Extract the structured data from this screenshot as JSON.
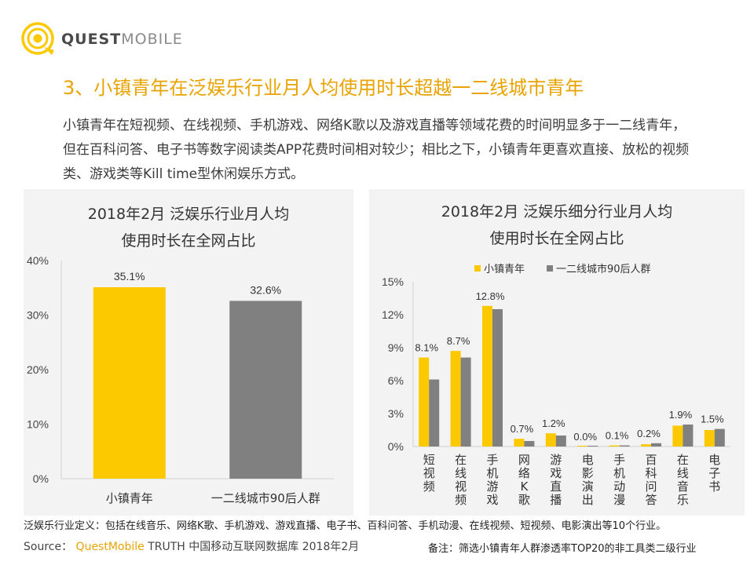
{
  "brand": {
    "name_bold": "QUEST",
    "name_light": "MOBILE"
  },
  "title": "3、小镇青年在泛娱乐行业月人均使用时长超越一二线城市青年",
  "description": "小镇青年在短视频、在线视频、手机游戏、网络K歌以及游戏直播等领域花费的时间明显多于一二线青年，但在百科问答、电子书等数字阅读类APP花费时间相对较少；相比之下，小镇青年更喜欢直接、放松的视频类、游戏类等Kill time型休闲娱乐方式。",
  "left_panel": {
    "title_line1": "2018年2月 泛娱乐行业月人均",
    "title_line2": "使用时长在全网占比"
  },
  "right_panel": {
    "title_line1": "2018年2月 泛娱乐细分行业月人均",
    "title_line2": "使用时长在全网占比"
  },
  "colors": {
    "yellow": "#fcc800",
    "gray": "#808080",
    "accent": "#e9a300"
  },
  "chart_data": [
    {
      "type": "bar",
      "title": "2018年2月 泛娱乐行业月人均使用时长在全网占比",
      "categories": [
        "小镇青年",
        "一二线城市90后人群"
      ],
      "values": [
        35.1,
        32.6
      ],
      "value_labels": [
        "35.1%",
        "32.6%"
      ],
      "colors": [
        "#fcc800",
        "#808080"
      ],
      "ylim": [
        0,
        40
      ],
      "yticks": [
        "0%",
        "10%",
        "20%",
        "30%",
        "40%"
      ],
      "grid": false
    },
    {
      "type": "bar",
      "title": "2018年2月 泛娱乐细分行业月人均使用时长在全网占比",
      "categories": [
        "短视频",
        "在线视频",
        "手机游戏",
        "网络K歌",
        "游戏直播",
        "电影演出",
        "手机动漫",
        "百科问答",
        "在线音乐",
        "电子书"
      ],
      "series": [
        {
          "name": "小镇青年",
          "color": "#fcc800",
          "values": [
            8.1,
            8.7,
            12.8,
            0.7,
            1.2,
            0.0,
            0.1,
            0.2,
            1.9,
            1.5
          ],
          "labels": [
            "8.1%",
            "8.7%",
            "12.8%",
            "0.7%",
            "1.2%",
            "0.0%",
            "0.1%",
            "0.2%",
            "1.9%",
            "1.5%"
          ]
        },
        {
          "name": "一二线城市90后人群",
          "color": "#808080",
          "values": [
            6.1,
            8.1,
            12.5,
            0.5,
            1.0,
            0.0,
            0.1,
            0.3,
            2.0,
            1.6
          ]
        }
      ],
      "ylim": [
        0,
        15
      ],
      "yticks": [
        "0%",
        "3%",
        "6%",
        "9%",
        "12%",
        "15%"
      ],
      "legend": "top",
      "grid": false
    }
  ],
  "footer": {
    "definition": "泛娱乐行业定义：包括在线音乐、网络K歌、手机游戏、游戏直播、电子书、百科问答、手机动漫、在线视频、短视频、电影演出等10个行业。",
    "source_prefix": "Source：",
    "source_brand": "QuestMobile",
    "source_rest": " TRUTH 中国移动互联网数据库 2018年2月",
    "note": "备注：筛选小镇青年人群渗透率TOP20的非工具类二级行业"
  }
}
